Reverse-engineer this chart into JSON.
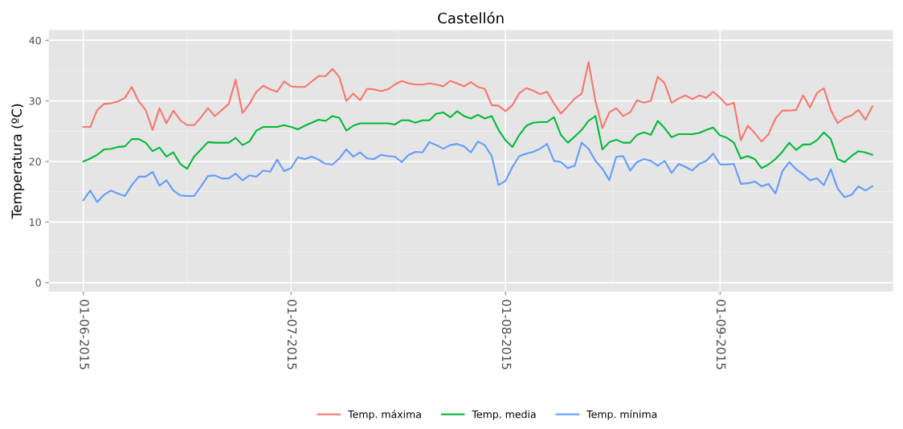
{
  "chart_data": {
    "type": "line",
    "title": "Castellón",
    "ylabel": "Temperatura (ºC)",
    "x": [
      "2015-06-01",
      "2015-06-02",
      "2015-06-03",
      "2015-06-04",
      "2015-06-05",
      "2015-06-06",
      "2015-06-07",
      "2015-06-08",
      "2015-06-09",
      "2015-06-10",
      "2015-06-11",
      "2015-06-12",
      "2015-06-13",
      "2015-06-14",
      "2015-06-15",
      "2015-06-16",
      "2015-06-17",
      "2015-06-18",
      "2015-06-19",
      "2015-06-20",
      "2015-06-21",
      "2015-06-22",
      "2015-06-23",
      "2015-06-24",
      "2015-06-25",
      "2015-06-26",
      "2015-06-27",
      "2015-06-28",
      "2015-06-29",
      "2015-06-30",
      "2015-07-01",
      "2015-07-02",
      "2015-07-03",
      "2015-07-04",
      "2015-07-05",
      "2015-07-06",
      "2015-07-07",
      "2015-07-08",
      "2015-07-09",
      "2015-07-10",
      "2015-07-11",
      "2015-07-12",
      "2015-07-13",
      "2015-07-14",
      "2015-07-15",
      "2015-07-16",
      "2015-07-17",
      "2015-07-18",
      "2015-07-19",
      "2015-07-20",
      "2015-07-21",
      "2015-07-22",
      "2015-07-23",
      "2015-07-24",
      "2015-07-25",
      "2015-07-26",
      "2015-07-27",
      "2015-07-28",
      "2015-07-29",
      "2015-07-30",
      "2015-07-31",
      "2015-08-01",
      "2015-08-02",
      "2015-08-03",
      "2015-08-04",
      "2015-08-05",
      "2015-08-06",
      "2015-08-07",
      "2015-08-08",
      "2015-08-09",
      "2015-08-10",
      "2015-08-11",
      "2015-08-12",
      "2015-08-13",
      "2015-08-14",
      "2015-08-15",
      "2015-08-16",
      "2015-08-17",
      "2015-08-18",
      "2015-08-19",
      "2015-08-20",
      "2015-08-21",
      "2015-08-22",
      "2015-08-23",
      "2015-08-24",
      "2015-08-25",
      "2015-08-26",
      "2015-08-27",
      "2015-08-28",
      "2015-08-29",
      "2015-08-30",
      "2015-08-31",
      "2015-09-01",
      "2015-09-02",
      "2015-09-03",
      "2015-09-04",
      "2015-09-05",
      "2015-09-06",
      "2015-09-07",
      "2015-09-08",
      "2015-09-09",
      "2015-09-10",
      "2015-09-11",
      "2015-09-12",
      "2015-09-13",
      "2015-09-14",
      "2015-09-15",
      "2015-09-16",
      "2015-09-17",
      "2015-09-18",
      "2015-09-19",
      "2015-09-20",
      "2015-09-21",
      "2015-09-22",
      "2015-09-23"
    ],
    "series": [
      {
        "name": "Temp. máxima",
        "color": "#f8766d",
        "values": [
          25.7,
          25.7,
          28.5,
          29.5,
          29.6,
          29.9,
          30.5,
          32.3,
          29.9,
          28.5,
          25.2,
          28.8,
          26.3,
          28.4,
          26.8,
          26.0,
          26.0,
          27.3,
          28.8,
          27.5,
          28.5,
          29.5,
          33.5,
          28.0,
          29.5,
          31.5,
          32.5,
          31.9,
          31.5,
          33.2,
          32.4,
          32.3,
          32.3,
          33.2,
          34.1,
          34.1,
          35.3,
          33.9,
          30.0,
          31.2,
          30.1,
          32.0,
          31.9,
          31.6,
          31.9,
          32.7,
          33.3,
          32.9,
          32.7,
          32.7,
          32.9,
          32.7,
          32.4,
          33.3,
          32.9,
          32.4,
          33.1,
          32.3,
          32.0,
          29.3,
          29.2,
          28.3,
          29.3,
          31.3,
          32.1,
          31.7,
          31.1,
          31.5,
          29.6,
          27.9,
          29.1,
          30.4,
          31.2,
          36.4,
          29.9,
          25.5,
          28.1,
          28.8,
          27.5,
          28.1,
          30.1,
          29.7,
          30.0,
          34.0,
          32.9,
          29.7,
          30.4,
          30.9,
          30.3,
          30.9,
          30.5,
          31.5,
          30.5,
          29.3,
          29.7,
          23.5,
          25.9,
          24.7,
          23.3,
          24.5,
          27.1,
          28.4,
          28.4,
          28.5,
          30.9,
          28.9,
          31.3,
          32.1,
          28.5,
          26.3,
          27.2,
          27.6,
          28.5,
          26.9,
          29.1
        ]
      },
      {
        "name": "Temp. media",
        "color": "#00ba38",
        "values": [
          20.0,
          20.5,
          21.1,
          22.0,
          22.1,
          22.4,
          22.5,
          23.7,
          23.7,
          23.1,
          21.7,
          22.3,
          20.8,
          21.5,
          19.6,
          18.8,
          20.8,
          22.0,
          23.2,
          23.1,
          23.1,
          23.1,
          23.9,
          22.7,
          23.3,
          25.1,
          25.7,
          25.7,
          25.7,
          26.0,
          25.7,
          25.3,
          25.9,
          26.4,
          26.9,
          26.7,
          27.5,
          27.2,
          25.1,
          25.9,
          26.3,
          26.3,
          26.3,
          26.3,
          26.3,
          26.1,
          26.8,
          26.8,
          26.4,
          26.8,
          26.8,
          27.9,
          28.1,
          27.3,
          28.3,
          27.5,
          27.1,
          27.7,
          27.1,
          27.5,
          25.2,
          23.5,
          22.4,
          24.4,
          25.9,
          26.4,
          26.5,
          26.5,
          27.3,
          24.4,
          23.1,
          24.1,
          25.2,
          26.7,
          27.5,
          22.0,
          23.2,
          23.6,
          23.1,
          23.1,
          24.4,
          24.8,
          24.4,
          26.7,
          25.5,
          24.0,
          24.5,
          24.5,
          24.5,
          24.7,
          25.2,
          25.6,
          24.3,
          23.9,
          23.1,
          20.5,
          20.9,
          20.4,
          18.9,
          19.5,
          20.4,
          21.6,
          23.1,
          21.9,
          22.8,
          22.8,
          23.5,
          24.8,
          23.7,
          20.4,
          19.9,
          20.9,
          21.7,
          21.5,
          21.1
        ]
      },
      {
        "name": "Temp. mínima",
        "color": "#619cff",
        "values": [
          13.6,
          15.2,
          13.3,
          14.5,
          15.2,
          14.7,
          14.3,
          16.1,
          17.5,
          17.5,
          18.3,
          16.0,
          16.9,
          15.2,
          14.4,
          14.3,
          14.3,
          15.9,
          17.6,
          17.7,
          17.2,
          17.2,
          18.0,
          16.9,
          17.7,
          17.5,
          18.5,
          18.3,
          20.3,
          18.4,
          18.9,
          20.7,
          20.4,
          20.8,
          20.3,
          19.6,
          19.5,
          20.5,
          22.0,
          20.8,
          21.5,
          20.5,
          20.4,
          21.1,
          20.9,
          20.8,
          19.9,
          21.1,
          21.6,
          21.5,
          23.2,
          22.7,
          22.1,
          22.7,
          22.9,
          22.5,
          21.5,
          23.3,
          22.7,
          20.9,
          16.1,
          16.8,
          19.1,
          20.9,
          21.3,
          21.6,
          22.1,
          22.9,
          20.1,
          19.9,
          18.9,
          19.3,
          23.1,
          22.1,
          20.1,
          18.8,
          16.9,
          20.8,
          20.9,
          18.5,
          19.9,
          20.4,
          20.1,
          19.3,
          20.1,
          18.1,
          19.6,
          19.1,
          18.5,
          19.6,
          20.1,
          21.3,
          19.5,
          19.5,
          19.6,
          16.3,
          16.4,
          16.7,
          15.9,
          16.3,
          14.7,
          18.4,
          19.9,
          18.7,
          17.9,
          16.9,
          17.2,
          16.1,
          18.7,
          15.5,
          14.1,
          14.5,
          15.9,
          15.2,
          15.9
        ]
      }
    ],
    "xlim": [
      "2015-05-27",
      "2015-09-26"
    ],
    "ylim": [
      -1.5,
      41.7
    ],
    "xticks": [
      {
        "value": "2015-06-01",
        "label": "01-06-2015"
      },
      {
        "value": "2015-07-01",
        "label": "01-07-2015"
      },
      {
        "value": "2015-08-01",
        "label": "01-08-2015"
      },
      {
        "value": "2015-09-01",
        "label": "01-09-2015"
      }
    ],
    "yticks": [
      0,
      10,
      20,
      30,
      40
    ],
    "grid": true,
    "legend": "bottom",
    "line_style": "solid",
    "marker": "none"
  }
}
